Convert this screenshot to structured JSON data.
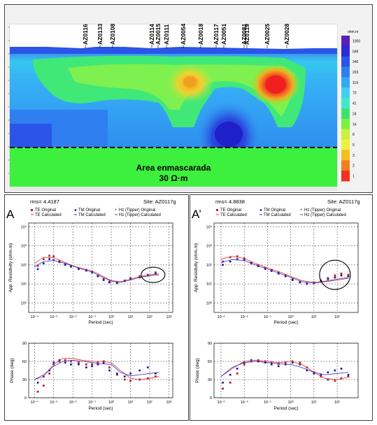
{
  "section": {
    "stations": [
      "AZ0116",
      "AZ0133",
      "AZ0108",
      "AZ0114",
      "AZ0015",
      "AZ0111",
      "AZ0054",
      "AZ0018",
      "AZ0117",
      "AZ0051",
      "AZ0081",
      "AZ0119",
      "AZ0025",
      "AZ0028"
    ],
    "mask_label": "Area enmascarada",
    "mask_value": "30 Ω·m",
    "colorbar_unit": "ohm.m",
    "colorbar_ticks": [
      "1000",
      "599",
      "346",
      "203",
      "119",
      "70",
      "41",
      "24",
      "14",
      "8",
      "5",
      "3",
      "2",
      "1"
    ],
    "colorbar_colors": [
      "#5a1fb8",
      "#2a2ad8",
      "#2a55e8",
      "#2f7ff0",
      "#36a8f5",
      "#3fd0f0",
      "#40e8c8",
      "#40e070",
      "#7ef040",
      "#c8f040",
      "#f0f040",
      "#f0c020",
      "#f08020",
      "#f03020"
    ]
  },
  "panels": [
    {
      "letter": "A",
      "rms": "rms= 4.4187",
      "site": "Site: AZ0117g",
      "legend": {
        "te_original": "TE Original",
        "te_calculated": "TE Calculated",
        "tm_original": "TM Original",
        "tm_calculated": "TM Calculated",
        "hz_original": "Hz (Tipper) Original",
        "hz_calculated": "Hz (Tipper) Calculated"
      },
      "res_ylabel": "App. Resistivity (ohm.m)",
      "res_xlabel": "Period (sec)",
      "phase_ylabel": "Phase (deg)",
      "phase_xlabel": "Period (sec)"
    },
    {
      "letter": "A’",
      "rms": "rms= 4.8838",
      "site": "Site: AZ0117g",
      "legend": {
        "te_original": "TE Original",
        "te_calculated": "TE Calculated",
        "tm_original": "TM Original",
        "tm_calculated": "TM Calculated",
        "hz_original": "Hz (Tipper) Original",
        "hz_calculated": "Hz (Tipper) Calculated"
      },
      "res_ylabel": "App. Resistivity (ohm.m)",
      "res_xlabel": "Period (sec)",
      "phase_ylabel": "Phase (deg)",
      "phase_xlabel": "Period (sec)"
    }
  ],
  "res_axis": {
    "yticks": [
      "10⁰",
      "10¹",
      "10²",
      "10³",
      "10⁴"
    ],
    "xticks_a": [
      "10⁻⁴",
      "10⁻³",
      "10⁻²",
      "10⁻¹",
      "10⁰",
      "10¹",
      "10²",
      "10³"
    ],
    "xticks_b": [
      "10⁻³",
      "10⁻²",
      "10⁻¹",
      "10⁰",
      "10¹",
      "10²"
    ]
  },
  "phase_axis": {
    "yticks": [
      "0",
      "30",
      "60",
      "90"
    ]
  },
  "chart_data": [
    {
      "type": "scatter",
      "panel": "A",
      "x_scale": "log",
      "y_scale": "log",
      "series": [
        {
          "name": "TE Original",
          "color": "#c0202a",
          "x": [
            0.00015,
            0.0003,
            0.0006,
            0.001,
            0.002,
            0.004,
            0.008,
            0.02,
            0.05,
            0.1,
            0.2,
            0.4,
            0.8,
            2,
            5,
            10,
            30,
            80,
            200
          ],
          "y": [
            90,
            200,
            300,
            280,
            160,
            110,
            85,
            65,
            55,
            45,
            28,
            18,
            13,
            12,
            15,
            20,
            25,
            30,
            40
          ]
        },
        {
          "name": "TM Original",
          "color": "#2020a0",
          "x": [
            0.00015,
            0.0003,
            0.0006,
            0.001,
            0.002,
            0.004,
            0.008,
            0.02,
            0.05,
            0.1,
            0.2,
            0.4,
            0.8,
            2,
            5,
            10,
            30,
            80,
            200
          ],
          "y": [
            60,
            120,
            200,
            180,
            140,
            100,
            80,
            60,
            50,
            40,
            25,
            16,
            12,
            11,
            14,
            18,
            22,
            28,
            35
          ]
        },
        {
          "name": "TE Calculated",
          "color": "#e03030",
          "x": [
            0.0001,
            0.0003,
            0.001,
            0.003,
            0.01,
            0.03,
            0.1,
            0.3,
            1,
            3,
            10,
            30,
            100,
            300
          ],
          "y": [
            120,
            250,
            240,
            150,
            90,
            65,
            48,
            28,
            15,
            13,
            18,
            24,
            30,
            34
          ]
        },
        {
          "name": "TM Calculated",
          "color": "#3030c0",
          "x": [
            0.0001,
            0.0003,
            0.001,
            0.003,
            0.01,
            0.03,
            0.1,
            0.3,
            1,
            3,
            10,
            30,
            100,
            300
          ],
          "y": [
            80,
            150,
            170,
            130,
            85,
            60,
            42,
            24,
            14,
            12,
            16,
            22,
            27,
            30
          ]
        }
      ],
      "ylim": [
        1,
        10000
      ],
      "xlim": [
        0.0001,
        1000
      ]
    },
    {
      "type": "scatter",
      "panel": "A",
      "chart": "phase",
      "x_scale": "log",
      "series": [
        {
          "name": "TE Original",
          "color": "#c0202a",
          "x": [
            0.00015,
            0.0003,
            0.0006,
            0.001,
            0.002,
            0.004,
            0.008,
            0.02,
            0.05,
            0.1,
            0.2,
            0.4,
            0.8,
            2,
            5,
            10,
            30,
            80,
            200
          ],
          "y": [
            10,
            20,
            40,
            55,
            60,
            62,
            60,
            58,
            55,
            55,
            58,
            60,
            50,
            38,
            30,
            28,
            30,
            32,
            35
          ]
        },
        {
          "name": "TM Original",
          "color": "#2020a0",
          "x": [
            0.00015,
            0.0003,
            0.0006,
            0.001,
            0.002,
            0.004,
            0.008,
            0.02,
            0.05,
            0.1,
            0.2,
            0.4,
            0.8,
            2,
            5,
            10,
            30,
            80,
            200
          ],
          "y": [
            25,
            35,
            45,
            58,
            62,
            58,
            55,
            55,
            50,
            52,
            55,
            58,
            45,
            40,
            35,
            40,
            45,
            50,
            40
          ]
        },
        {
          "name": "TE Calculated",
          "color": "#e03030",
          "x": [
            0.0001,
            0.0003,
            0.001,
            0.003,
            0.01,
            0.03,
            0.1,
            0.3,
            1,
            3,
            10,
            30,
            100,
            300
          ],
          "y": [
            30,
            35,
            55,
            65,
            65,
            62,
            60,
            60,
            58,
            45,
            32,
            30,
            32,
            35
          ]
        },
        {
          "name": "TM Calculated",
          "color": "#3030c0",
          "x": [
            0.0001,
            0.0003,
            0.001,
            0.003,
            0.01,
            0.03,
            0.1,
            0.3,
            1,
            3,
            10,
            30,
            100,
            300
          ],
          "y": [
            30,
            38,
            52,
            60,
            62,
            60,
            58,
            56,
            55,
            42,
            36,
            38,
            40,
            42
          ]
        }
      ],
      "ylim": [
        0,
        90
      ]
    },
    {
      "type": "scatter",
      "panel": "A’",
      "x_scale": "log",
      "y_scale": "log",
      "series": [
        {
          "name": "TE Original",
          "color": "#c0202a",
          "x": [
            0.0012,
            0.0025,
            0.005,
            0.01,
            0.02,
            0.04,
            0.08,
            0.15,
            0.3,
            0.6,
            1.2,
            2.5,
            5,
            10,
            20,
            40,
            80,
            150,
            300
          ],
          "y": [
            150,
            250,
            280,
            220,
            130,
            95,
            70,
            55,
            40,
            28,
            18,
            13,
            11,
            12,
            15,
            20,
            28,
            35,
            30
          ]
        },
        {
          "name": "TM Original",
          "color": "#2020a0",
          "x": [
            0.0012,
            0.0025,
            0.005,
            0.01,
            0.02,
            0.04,
            0.08,
            0.15,
            0.3,
            0.6,
            1.2,
            2.5,
            5,
            10,
            20,
            40,
            80,
            150,
            300
          ],
          "y": [
            100,
            150,
            200,
            180,
            120,
            85,
            62,
            48,
            35,
            25,
            16,
            12,
            10,
            11,
            14,
            18,
            22,
            28,
            25
          ]
        },
        {
          "name": "TE Calculated",
          "color": "#e03030",
          "x": [
            0.001,
            0.003,
            0.01,
            0.03,
            0.1,
            0.3,
            1,
            3,
            10,
            30,
            100,
            300
          ],
          "y": [
            200,
            280,
            220,
            120,
            70,
            45,
            25,
            15,
            12,
            14,
            18,
            22
          ]
        },
        {
          "name": "TM Calculated",
          "color": "#3030c0",
          "x": [
            0.001,
            0.003,
            0.01,
            0.03,
            0.1,
            0.3,
            1,
            3,
            10,
            30,
            100,
            300
          ],
          "y": [
            130,
            190,
            170,
            100,
            60,
            38,
            22,
            13,
            11,
            13,
            16,
            20
          ]
        }
      ],
      "ylim": [
        1,
        10000
      ],
      "xlim": [
        0.001,
        1000
      ]
    },
    {
      "type": "scatter",
      "panel": "A’",
      "chart": "phase",
      "x_scale": "log",
      "series": [
        {
          "name": "TE Original",
          "color": "#c0202a",
          "x": [
            0.0012,
            0.0025,
            0.005,
            0.01,
            0.02,
            0.04,
            0.08,
            0.15,
            0.3,
            0.6,
            1.2,
            2.5,
            5,
            10,
            20,
            40,
            80,
            150,
            300
          ],
          "y": [
            15,
            25,
            40,
            55,
            60,
            62,
            60,
            58,
            56,
            58,
            60,
            58,
            50,
            42,
            35,
            30,
            28,
            32,
            35
          ]
        },
        {
          "name": "TM Original",
          "color": "#2020a0",
          "x": [
            0.0012,
            0.0025,
            0.005,
            0.01,
            0.02,
            0.04,
            0.08,
            0.15,
            0.3,
            0.6,
            1.2,
            2.5,
            5,
            10,
            20,
            40,
            80,
            150,
            300
          ],
          "y": [
            25,
            38,
            48,
            58,
            62,
            60,
            58,
            55,
            52,
            55,
            58,
            55,
            45,
            40,
            38,
            42,
            45,
            48,
            38
          ]
        },
        {
          "name": "TE Calculated",
          "color": "#e03030",
          "x": [
            0.001,
            0.003,
            0.01,
            0.03,
            0.1,
            0.3,
            1,
            3,
            10,
            30,
            100,
            300
          ],
          "y": [
            35,
            48,
            60,
            62,
            60,
            58,
            60,
            55,
            42,
            32,
            30,
            34
          ]
        },
        {
          "name": "TM Calculated",
          "color": "#3030c0",
          "x": [
            0.001,
            0.003,
            0.01,
            0.03,
            0.1,
            0.3,
            1,
            3,
            10,
            30,
            100,
            300
          ],
          "y": [
            35,
            50,
            58,
            60,
            58,
            56,
            55,
            50,
            42,
            38,
            40,
            42
          ]
        }
      ],
      "ylim": [
        0,
        90
      ]
    }
  ]
}
